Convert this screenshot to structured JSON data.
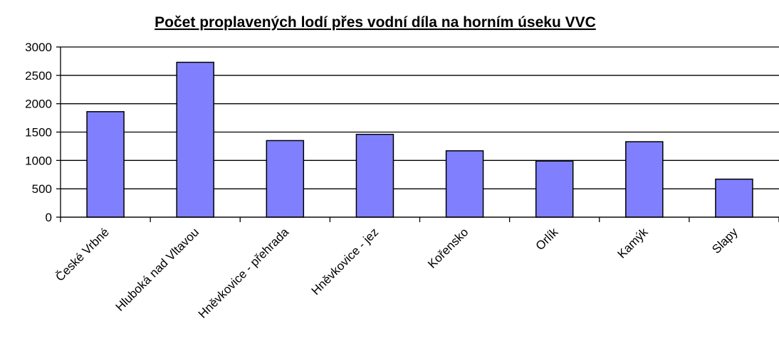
{
  "chart_data": {
    "type": "bar",
    "title": "Počet proplavených lodí přes vodní díla na horním úseku VVC",
    "categories": [
      "České Vrbné",
      "Hluboká nad Vltavou",
      "Hněvkovice - přehrada",
      "Hněvkovice - jez",
      "Kořensko",
      "Orlík",
      "Kamýk",
      "Slapy"
    ],
    "values": [
      1860,
      2730,
      1350,
      1460,
      1170,
      990,
      1330,
      670
    ],
    "color": "#8080ff",
    "ylim": [
      0,
      3000
    ],
    "yticks": [
      0,
      500,
      1000,
      1500,
      2000,
      2500,
      3000
    ],
    "grid": true
  }
}
